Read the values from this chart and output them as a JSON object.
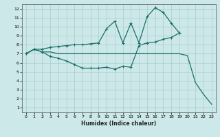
{
  "xlabel": "Humidex (Indice chaleur)",
  "bg_color": "#cce8e8",
  "grid_color": "#aacccc",
  "line_color": "#1a6e6a",
  "xlim": [
    -0.5,
    23.5
  ],
  "ylim": [
    0.5,
    12.5
  ],
  "xticks": [
    0,
    1,
    2,
    3,
    4,
    5,
    6,
    7,
    8,
    9,
    10,
    11,
    12,
    13,
    14,
    15,
    16,
    17,
    18,
    19,
    20,
    21,
    22,
    23
  ],
  "yticks": [
    1,
    2,
    3,
    4,
    5,
    6,
    7,
    8,
    9,
    10,
    11,
    12
  ],
  "series1_x": [
    0,
    1,
    2,
    3,
    4,
    5,
    6,
    7,
    8,
    9,
    10,
    11,
    12,
    13,
    14,
    15,
    16,
    17,
    18,
    19,
    20,
    21,
    22,
    23
  ],
  "series1_y": [
    7.0,
    7.5,
    7.2,
    7.2,
    7.0,
    7.0,
    7.0,
    7.0,
    7.0,
    7.0,
    7.0,
    7.0,
    7.0,
    7.0,
    7.0,
    7.0,
    7.0,
    7.0,
    7.0,
    7.0,
    6.8,
    3.8,
    2.5,
    1.4
  ],
  "series2_x": [
    0,
    1,
    2,
    3,
    4,
    5,
    6,
    7,
    8,
    9,
    10,
    11,
    12,
    13,
    14,
    15,
    16,
    17,
    18,
    19,
    20,
    21,
    22,
    23
  ],
  "series2_y": [
    7.0,
    7.5,
    7.2,
    6.7,
    6.5,
    6.2,
    5.8,
    5.4,
    5.4,
    5.4,
    5.5,
    5.3,
    5.6,
    5.5,
    7.9,
    8.2,
    8.3,
    8.6,
    8.8,
    9.3,
    null,
    null,
    null,
    null
  ],
  "series3_x": [
    0,
    1,
    2,
    3,
    4,
    5,
    6,
    7,
    8,
    9,
    10,
    11,
    12,
    13,
    14,
    15,
    16,
    17,
    18,
    19,
    20,
    21,
    22,
    23
  ],
  "series3_y": [
    7.0,
    7.5,
    7.5,
    7.7,
    7.8,
    7.9,
    8.0,
    8.0,
    8.1,
    8.2,
    9.8,
    10.6,
    8.2,
    10.4,
    8.2,
    11.1,
    12.1,
    11.6,
    10.4,
    9.3,
    null,
    null,
    null,
    null
  ]
}
